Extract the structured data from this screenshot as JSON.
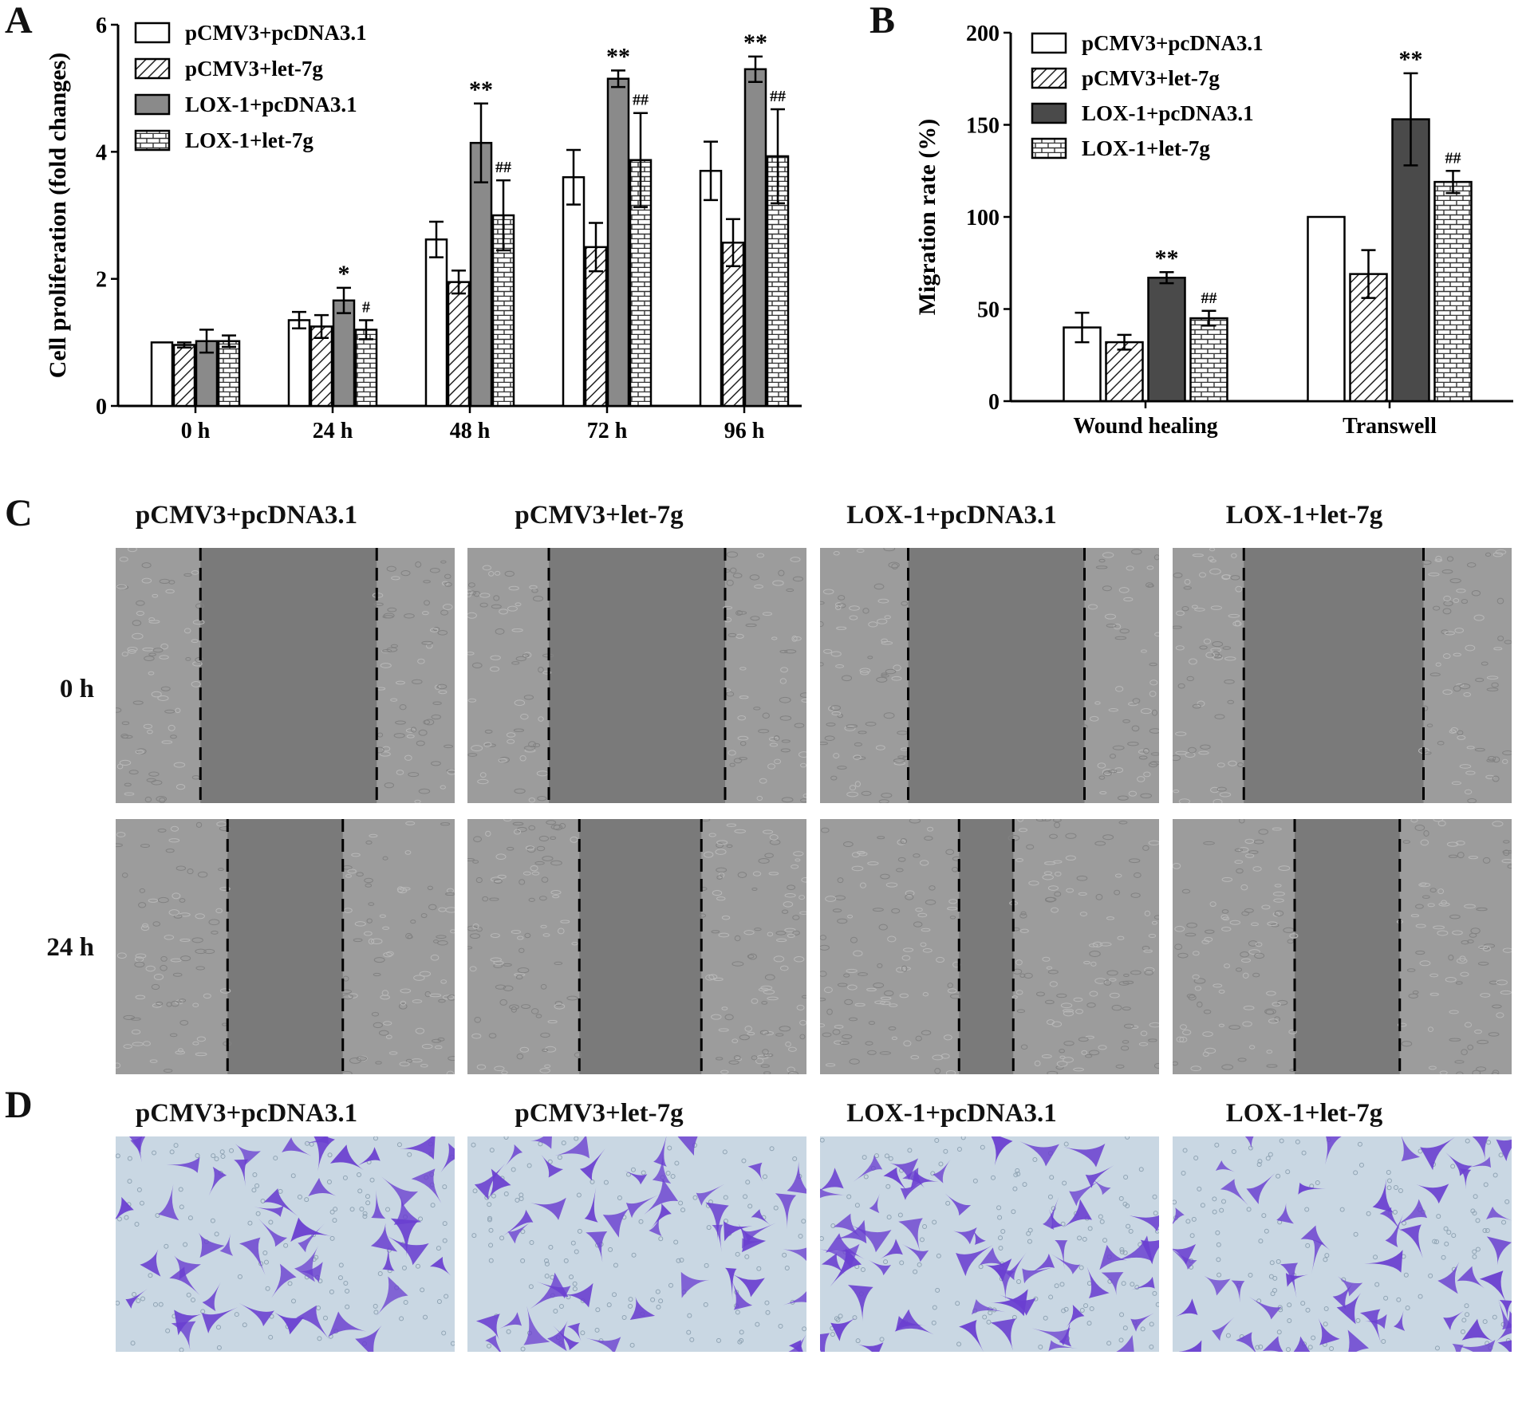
{
  "panels": {
    "a": {
      "letter": "A"
    },
    "b": {
      "letter": "B"
    },
    "c": {
      "letter": "C",
      "row_labels": [
        "0 h",
        "24 h"
      ]
    },
    "d": {
      "letter": "D"
    }
  },
  "groups": [
    "pCMV3+pcDNA3.1",
    "pCMV3+let-7g",
    "LOX-1+pcDNA3.1",
    "LOX-1+let-7g"
  ],
  "colors": {
    "white_fill": "#ffffff",
    "hatch_line": "#222222",
    "lox_pcdna_fill_A": "#8a8a8a",
    "lox_pcdna_fill_B": "#4a4a4a",
    "brick_line": "#333333",
    "axis": "#000000",
    "wound_bg": "#7a7a7a",
    "wound_cells": "#9c9c9c",
    "transwell_bg": "#c9d7e3",
    "transwell_cell": "#6a3fd0"
  },
  "chart_data": [
    {
      "id": "A",
      "type": "bar",
      "title": "",
      "xlabel": "",
      "ylabel": "Cell proliferation (fold changes)",
      "ylim": [
        0,
        6
      ],
      "yticks": [
        "0",
        "2",
        "4",
        "6"
      ],
      "categories": [
        "0 h",
        "24 h",
        "48 h",
        "72 h",
        "96 h"
      ],
      "legend": "top-left",
      "series": [
        {
          "name": "pCMV3+pcDNA3.1",
          "values": [
            1.0,
            1.35,
            2.62,
            3.6,
            3.7
          ],
          "errors": [
            0.0,
            0.13,
            0.28,
            0.43,
            0.46
          ]
        },
        {
          "name": "pCMV3+let-7g",
          "values": [
            0.96,
            1.25,
            1.95,
            2.5,
            2.57
          ],
          "errors": [
            0.04,
            0.18,
            0.18,
            0.38,
            0.37
          ]
        },
        {
          "name": "LOX-1+pcDNA3.1",
          "values": [
            1.02,
            1.66,
            4.14,
            5.15,
            5.3
          ],
          "errors": [
            0.18,
            0.2,
            0.62,
            0.13,
            0.2
          ]
        },
        {
          "name": "LOX-1+let-7g",
          "values": [
            1.02,
            1.2,
            3.0,
            3.87,
            3.93
          ],
          "errors": [
            0.09,
            0.15,
            0.55,
            0.74,
            0.74
          ]
        }
      ],
      "annotations": [
        {
          "category": "24 h",
          "series": 2,
          "text": "*"
        },
        {
          "category": "24 h",
          "series": 3,
          "text": "#"
        },
        {
          "category": "48 h",
          "series": 2,
          "text": "**"
        },
        {
          "category": "48 h",
          "series": 3,
          "text": "##"
        },
        {
          "category": "72 h",
          "series": 2,
          "text": "**"
        },
        {
          "category": "72 h",
          "series": 3,
          "text": "##"
        },
        {
          "category": "96 h",
          "series": 2,
          "text": "**"
        },
        {
          "category": "96 h",
          "series": 3,
          "text": "##"
        }
      ]
    },
    {
      "id": "B",
      "type": "bar",
      "title": "",
      "xlabel": "",
      "ylabel": "Migration rate (%)",
      "ylim": [
        0,
        200
      ],
      "yticks": [
        "0",
        "50",
        "100",
        "150",
        "200"
      ],
      "categories": [
        "Wound healing",
        "Transwell"
      ],
      "legend": "top-left",
      "series": [
        {
          "name": "pCMV3+pcDNA3.1",
          "values": [
            40,
            100
          ],
          "errors": [
            8,
            0
          ]
        },
        {
          "name": "pCMV3+let-7g",
          "values": [
            32,
            69
          ],
          "errors": [
            4,
            13
          ]
        },
        {
          "name": "LOX-1+pcDNA3.1",
          "values": [
            67,
            153
          ],
          "errors": [
            3,
            25
          ]
        },
        {
          "name": "LOX-1+let-7g",
          "values": [
            45,
            119
          ],
          "errors": [
            4,
            6
          ]
        }
      ],
      "annotations": [
        {
          "category": "Wound healing",
          "series": 2,
          "text": "**"
        },
        {
          "category": "Wound healing",
          "series": 3,
          "text": "##"
        },
        {
          "category": "Transwell",
          "series": 2,
          "text": "**"
        },
        {
          "category": "Transwell",
          "series": 3,
          "text": "##"
        }
      ]
    }
  ],
  "wound_images": [
    {
      "row": "0 h",
      "group": "pCMV3+pcDNA3.1",
      "gap_start": 0.25,
      "gap_end": 0.77
    },
    {
      "row": "0 h",
      "group": "pCMV3+let-7g",
      "gap_start": 0.24,
      "gap_end": 0.76
    },
    {
      "row": "0 h",
      "group": "LOX-1+pcDNA3.1",
      "gap_start": 0.26,
      "gap_end": 0.78
    },
    {
      "row": "0 h",
      "group": "LOX-1+let-7g",
      "gap_start": 0.21,
      "gap_end": 0.74
    },
    {
      "row": "24 h",
      "group": "pCMV3+pcDNA3.1",
      "gap_start": 0.33,
      "gap_end": 0.67
    },
    {
      "row": "24 h",
      "group": "pCMV3+let-7g",
      "gap_start": 0.33,
      "gap_end": 0.69
    },
    {
      "row": "24 h",
      "group": "LOX-1+pcDNA3.1",
      "gap_start": 0.41,
      "gap_end": 0.57
    },
    {
      "row": "24 h",
      "group": "LOX-1+let-7g",
      "gap_start": 0.36,
      "gap_end": 0.67
    }
  ],
  "transwell_images": [
    {
      "group": "pCMV3+pcDNA3.1",
      "cell_density": 0.5
    },
    {
      "group": "pCMV3+let-7g",
      "cell_density": 0.55
    },
    {
      "group": "LOX-1+pcDNA3.1",
      "cell_density": 0.9
    },
    {
      "group": "LOX-1+let-7g",
      "cell_density": 0.7
    }
  ]
}
